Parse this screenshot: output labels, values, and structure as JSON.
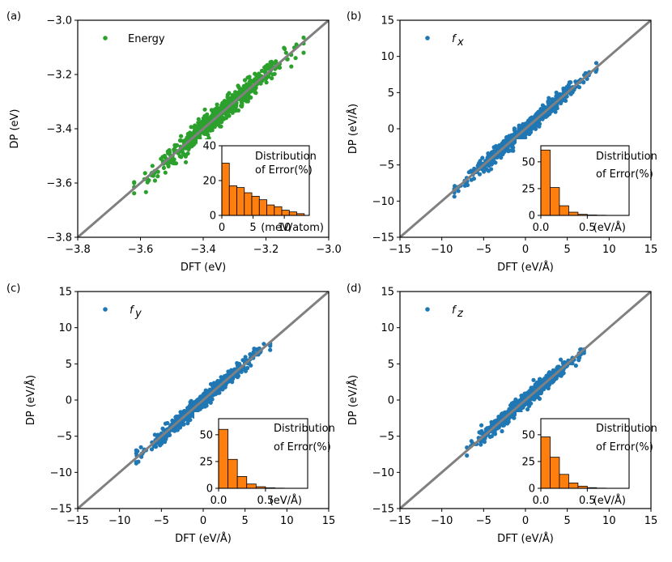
{
  "colors": {
    "energy_points": "#2ca02c",
    "force_points": "#1f77b4",
    "diagonal": "#808080",
    "histogram": "#ff7f0e",
    "hist_edge": "#000000"
  },
  "chart_data": [
    {
      "type": "scatter",
      "panel_label": "(a)",
      "legend": "Energy",
      "legend_subscript": "",
      "color": "#2ca02c",
      "xlabel": "DFT (eV)",
      "ylabel": "DP (eV)",
      "xlim": [
        -3.8,
        -3.0
      ],
      "ylim": [
        -3.8,
        -3.0
      ],
      "xticks": [
        -3.8,
        -3.6,
        -3.4,
        -3.2,
        -3.0
      ],
      "xtick_labels": [
        "−3.8",
        "−3.6",
        "−3.4",
        "−3.2",
        "−3.0"
      ],
      "yticks": [
        -3.8,
        -3.6,
        -3.4,
        -3.2,
        -3.0
      ],
      "ytick_labels": [
        "−3.8",
        "−3.6",
        "−3.4",
        "−3.2",
        "−3.0"
      ],
      "scatter_range": [
        -3.62,
        -3.08
      ],
      "scatter_spread": 0.02,
      "inset": {
        "type": "bar",
        "title_lines": [
          "Distribution",
          "of Error(%)"
        ],
        "unit_label": "(meV/atom)",
        "xlim": [
          0,
          14
        ],
        "ylim": [
          0,
          40
        ],
        "bin_edges": [
          0,
          1.2,
          2.4,
          3.6,
          4.8,
          6.0,
          7.2,
          8.4,
          9.6,
          10.8,
          12.0,
          13.2
        ],
        "values": [
          30,
          17,
          16,
          13,
          11,
          9,
          6,
          5,
          3,
          2,
          1
        ],
        "xticks": [
          0,
          5,
          10
        ],
        "xtick_labels": [
          "0",
          "5",
          "10"
        ],
        "yticks": [
          0,
          20,
          40
        ],
        "ytick_labels": [
          "0",
          "20",
          "40"
        ]
      }
    },
    {
      "type": "scatter",
      "panel_label": "(b)",
      "legend": "f",
      "legend_subscript": "x",
      "color": "#1f77b4",
      "xlabel": "DFT (eV/Å)",
      "ylabel": "DP (eV/Å)",
      "xlim": [
        -15,
        15
      ],
      "ylim": [
        -15,
        15
      ],
      "xticks": [
        -15,
        -10,
        -5,
        0,
        5,
        10,
        15
      ],
      "xtick_labels": [
        "−15",
        "−10",
        "−5",
        "0",
        "5",
        "10",
        "15"
      ],
      "yticks": [
        -15,
        -10,
        -5,
        0,
        5,
        10,
        15
      ],
      "ytick_labels": [
        "−15",
        "−10",
        "−5",
        "0",
        "5",
        "10",
        "15"
      ],
      "scatter_range": [
        -8.5,
        8.5
      ],
      "scatter_spread": 0.5,
      "inset": {
        "type": "bar",
        "title_lines": [
          "Distribution",
          "of Error(%)"
        ],
        "unit_label": "(eV/Å)",
        "xlim": [
          0,
          0.95
        ],
        "ylim": [
          0,
          65
        ],
        "bin_edges": [
          0,
          0.1,
          0.2,
          0.3,
          0.4,
          0.5,
          0.6,
          0.7
        ],
        "values": [
          61,
          26,
          9,
          3,
          1,
          0.4,
          0.2
        ],
        "xticks": [
          0,
          0.5
        ],
        "xtick_labels": [
          "0.0",
          "0.5"
        ],
        "yticks": [
          0,
          25,
          50
        ],
        "ytick_labels": [
          "0",
          "25",
          "50"
        ]
      }
    },
    {
      "type": "scatter",
      "panel_label": "(c)",
      "legend": "f",
      "legend_subscript": "y",
      "color": "#1f77b4",
      "xlabel": "DFT (eV/Å)",
      "ylabel": "DP (eV/Å)",
      "xlim": [
        -15,
        15
      ],
      "ylim": [
        -15,
        15
      ],
      "xticks": [
        -15,
        -10,
        -5,
        0,
        5,
        10,
        15
      ],
      "xtick_labels": [
        "−15",
        "−10",
        "−5",
        "0",
        "5",
        "10",
        "15"
      ],
      "yticks": [
        -15,
        -10,
        -5,
        0,
        5,
        10,
        15
      ],
      "ytick_labels": [
        "−15",
        "−10",
        "−5",
        "0",
        "5",
        "10",
        "15"
      ],
      "scatter_range": [
        -8,
        8
      ],
      "scatter_spread": 0.5,
      "inset": {
        "type": "bar",
        "title_lines": [
          "Distribution",
          "of Error(%)"
        ],
        "unit_label": "(eV/Å)",
        "xlim": [
          0,
          0.95
        ],
        "ylim": [
          0,
          65
        ],
        "bin_edges": [
          0,
          0.1,
          0.2,
          0.3,
          0.4,
          0.5,
          0.6,
          0.7
        ],
        "values": [
          55,
          27,
          11,
          4,
          1.5,
          0.5,
          0.2
        ],
        "xticks": [
          0,
          0.5
        ],
        "xtick_labels": [
          "0.0",
          "0.5"
        ],
        "yticks": [
          0,
          25,
          50
        ],
        "ytick_labels": [
          "0",
          "25",
          "50"
        ]
      }
    },
    {
      "type": "scatter",
      "panel_label": "(d)",
      "legend": "f",
      "legend_subscript": "z",
      "color": "#1f77b4",
      "xlabel": "DFT (eV/Å)",
      "ylabel": "DP (eV/Å)",
      "xlim": [
        -15,
        15
      ],
      "ylim": [
        -15,
        15
      ],
      "xticks": [
        -15,
        -10,
        -5,
        0,
        5,
        10,
        15
      ],
      "xtick_labels": [
        "−15",
        "−10",
        "−5",
        "0",
        "5",
        "10",
        "15"
      ],
      "yticks": [
        -15,
        -10,
        -5,
        0,
        5,
        10,
        15
      ],
      "ytick_labels": [
        "−15",
        "−10",
        "−5",
        "0",
        "5",
        "10",
        "15"
      ],
      "scatter_range": [
        -7,
        7
      ],
      "scatter_spread": 0.5,
      "inset": {
        "type": "bar",
        "title_lines": [
          "Distribution",
          "of Error(%)"
        ],
        "unit_label": "(eV/Å)",
        "xlim": [
          0,
          0.95
        ],
        "ylim": [
          0,
          65
        ],
        "bin_edges": [
          0,
          0.1,
          0.2,
          0.3,
          0.4,
          0.5,
          0.6,
          0.7
        ],
        "values": [
          48,
          29,
          13,
          5,
          2,
          0.6,
          0.2
        ],
        "xticks": [
          0,
          0.5
        ],
        "xtick_labels": [
          "0.0",
          "0.5"
        ],
        "yticks": [
          0,
          25,
          50
        ],
        "ytick_labels": [
          "0",
          "25",
          "50"
        ]
      }
    }
  ]
}
